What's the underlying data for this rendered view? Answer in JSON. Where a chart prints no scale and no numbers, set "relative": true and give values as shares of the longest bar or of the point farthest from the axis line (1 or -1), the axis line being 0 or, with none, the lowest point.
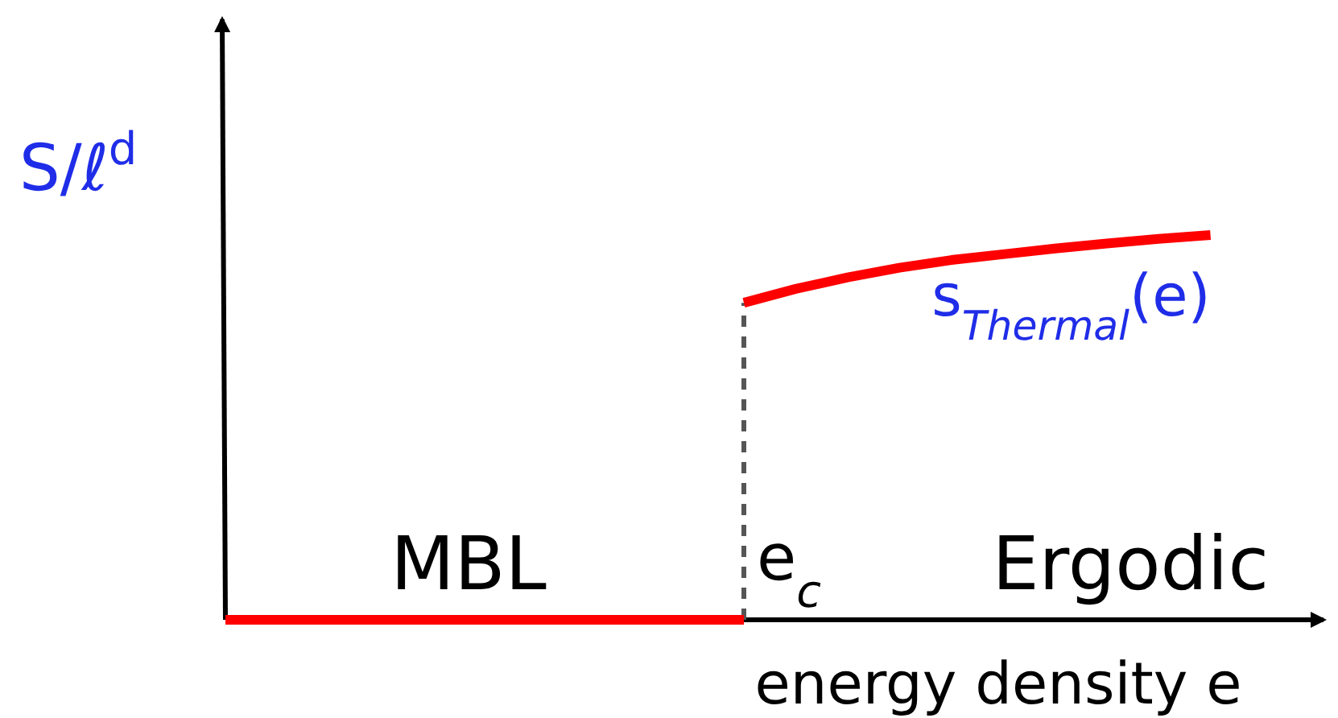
{
  "chart_data": {
    "type": "line",
    "relative": true,
    "ylabel": "S/ℓ$^{d}$",
    "xlabel": "energy density e",
    "categories": [
      null,
      null,
      null,
      null,
      null,
      null,
      null,
      null,
      null,
      null,
      null,
      null,
      null,
      null,
      null,
      null,
      null,
      null,
      null,
      null,
      null,
      null
    ],
    "series": [
      {
        "color": "#ff0000",
        "values": [
          0,
          0,
          0,
          0,
          0,
          0,
          0,
          0,
          0,
          0,
          0,
          null,
          null,
          null,
          null,
          null,
          null,
          null,
          null,
          null,
          null,
          null
        ]
      },
      {
        "name": "s$_{Thermal}$(e)",
        "color": "#ff0000",
        "values": [
          null,
          null,
          null,
          null,
          null,
          null,
          null,
          null,
          null,
          null,
          0.824,
          0.86,
          0.89,
          0.915,
          0.935,
          0.95,
          0.965,
          0.978,
          0.99,
          1.0,
          null,
          null
        ]
      }
    ],
    "annotations": [
      "MBL",
      "Ergodic",
      "e$_{c}$"
    ],
    "marker": "none",
    "line_style": "solid"
  }
}
